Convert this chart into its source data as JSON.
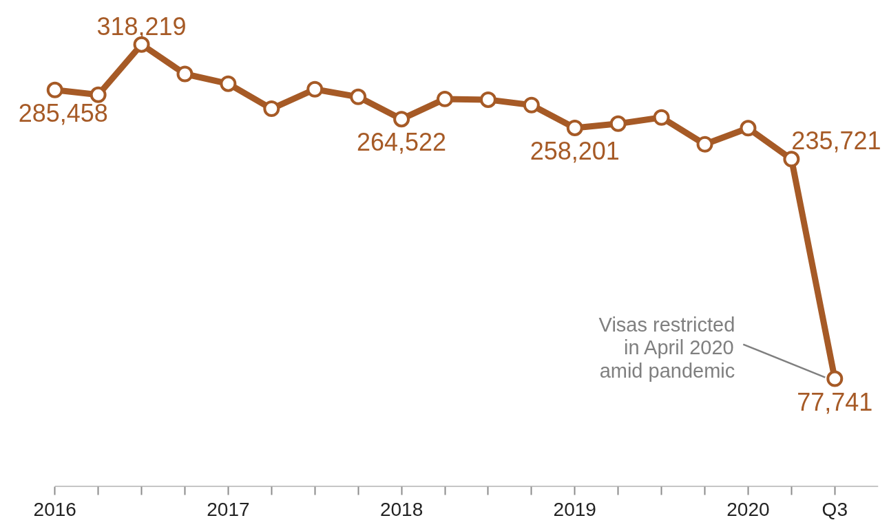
{
  "chart_data": {
    "type": "line",
    "categories": [
      "2016",
      null,
      null,
      null,
      "2017",
      null,
      null,
      null,
      "2018",
      null,
      null,
      null,
      "2019",
      null,
      null,
      null,
      "2020",
      null,
      "Q3"
    ],
    "series": [
      {
        "color": "#a65a26",
        "values": [
          285458,
          282000,
          318219,
          297000,
          290000,
          272000,
          286000,
          280500,
          264522,
          279000,
          278500,
          274600,
          258201,
          261200,
          265700,
          246400,
          258000,
          235721,
          77741
        ],
        "value_labels": [
          "285,458",
          null,
          "318,219",
          null,
          null,
          null,
          null,
          null,
          "264,522",
          null,
          null,
          null,
          "258,201",
          null,
          null,
          null,
          null,
          "235,721",
          "77,741"
        ]
      }
    ],
    "tick_labels": "x",
    "grid": false,
    "marker": "circle",
    "line_style": "solid",
    "annotations": [
      "Visas restricted\nin April 2020\namid pandemic"
    ]
  }
}
